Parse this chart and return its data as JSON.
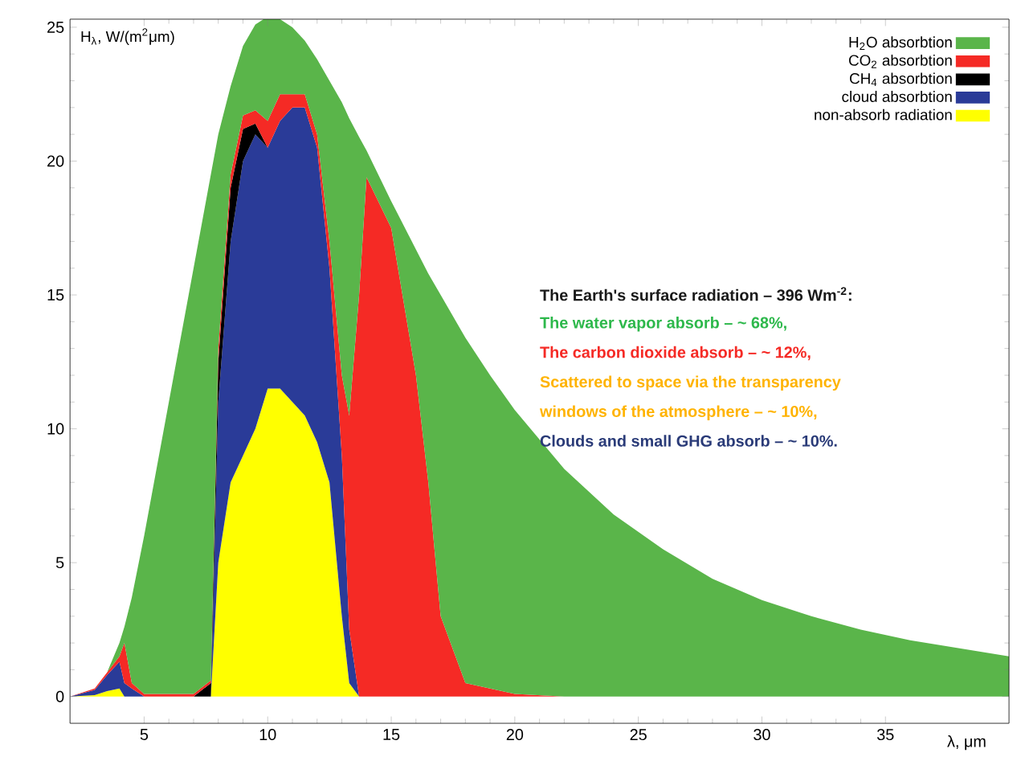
{
  "chart_data": {
    "type": "area",
    "stacked": true,
    "xlabel": "λ, μm",
    "ylabel": "H$_{λ}$, W/(m$^{2}$μm)",
    "x": [
      2,
      3,
      3.5,
      4,
      4.2,
      4.5,
      5,
      6,
      7,
      7.7,
      8,
      8.5,
      9,
      9.5,
      10,
      10.5,
      11,
      11.5,
      12,
      12.5,
      13,
      13.3,
      13.7,
      14,
      15,
      16,
      16.5,
      17,
      18,
      19,
      20,
      22,
      24,
      26,
      28,
      30,
      32,
      34,
      36,
      38,
      40
    ],
    "series": [
      {
        "name": "non-absorb radiation",
        "color": "#ffff00",
        "values": [
          0,
          0.05,
          0.2,
          0.3,
          0,
          0,
          0,
          0,
          0,
          0,
          5,
          8,
          9,
          10,
          11.5,
          11.5,
          11,
          10.5,
          9.5,
          8,
          3,
          0.5,
          0,
          0,
          0,
          0,
          0,
          0,
          0,
          0,
          0,
          0,
          0,
          0,
          0,
          0,
          0,
          0,
          0,
          0,
          0
        ]
      },
      {
        "name": "cloud absorbtion",
        "color": "#2a3b98",
        "values": [
          0,
          0.2,
          0.6,
          1.0,
          0.5,
          0.3,
          0,
          0,
          0,
          0,
          6,
          9,
          11,
          11,
          9,
          10,
          11,
          11.5,
          11,
          8,
          6,
          2,
          0,
          0,
          0,
          0,
          0,
          0,
          0,
          0,
          0,
          0,
          0,
          0,
          0,
          0,
          0,
          0,
          0,
          0,
          0
        ]
      },
      {
        "name": "CH$_{4}$ absorbtion",
        "color": "#000000",
        "values": [
          null,
          null,
          null,
          null,
          null,
          null,
          null,
          null,
          0,
          0.5,
          1.5,
          2,
          1.2,
          0.4,
          0,
          null,
          null,
          null,
          null,
          null,
          null,
          null,
          null,
          null,
          null,
          null,
          null,
          null,
          null,
          null,
          null,
          null,
          null,
          null,
          null,
          null,
          null,
          null,
          null,
          null,
          null
        ]
      },
      {
        "name": "CO$_{2}$ absorbtion",
        "color": "#f52a25",
        "values": [
          0,
          0.05,
          0.1,
          0.2,
          1.5,
          0.2,
          0.1,
          0.1,
          0.1,
          0.1,
          0.5,
          0.5,
          0.5,
          0.5,
          1,
          1,
          0.5,
          0.5,
          0.5,
          1,
          3,
          8,
          15,
          19.4,
          17.5,
          12,
          8,
          3,
          0.5,
          0.3,
          0.1,
          0,
          0,
          0,
          0,
          0,
          0,
          0,
          0,
          0,
          0
        ]
      },
      {
        "name": "H$_{2}$O absorbtion",
        "color": "#5ab54a",
        "values": [
          0,
          0,
          0,
          0.5,
          0.6,
          3.2,
          5.9,
          10.9,
          15.9,
          18.9,
          8.0,
          3.3,
          2.6,
          3.2,
          3.9,
          2.8,
          2.5,
          2.0,
          2.8,
          6.0,
          10.2,
          11.1,
          5.9,
          1.0,
          1.0,
          4.7,
          7.8,
          12,
          12.9,
          11.7,
          10.6,
          8.5,
          6.8,
          5.5,
          4.4,
          3.6,
          3.0,
          2.5,
          2.1,
          1.8,
          1.5
        ]
      }
    ],
    "xlim": [
      2,
      40
    ],
    "ylim": [
      -1,
      25.3
    ],
    "xticks": [
      5,
      10,
      15,
      20,
      25,
      30,
      35
    ],
    "yticks": [
      0,
      5,
      10,
      15,
      20,
      25
    ],
    "legend": "top right",
    "grid": false,
    "annotations": [
      "The Earth's surface radiation – 396 Wm$^{-2}$:",
      "The water vapor absorb – ~ 68%,",
      "The carbon dioxide absorb – ~ 12%,",
      "Scattered to space via the transparency",
      "windows of the atmosphere – ~ 10%,",
      "Clouds and small GHG absorb – ~ 10%."
    ]
  }
}
